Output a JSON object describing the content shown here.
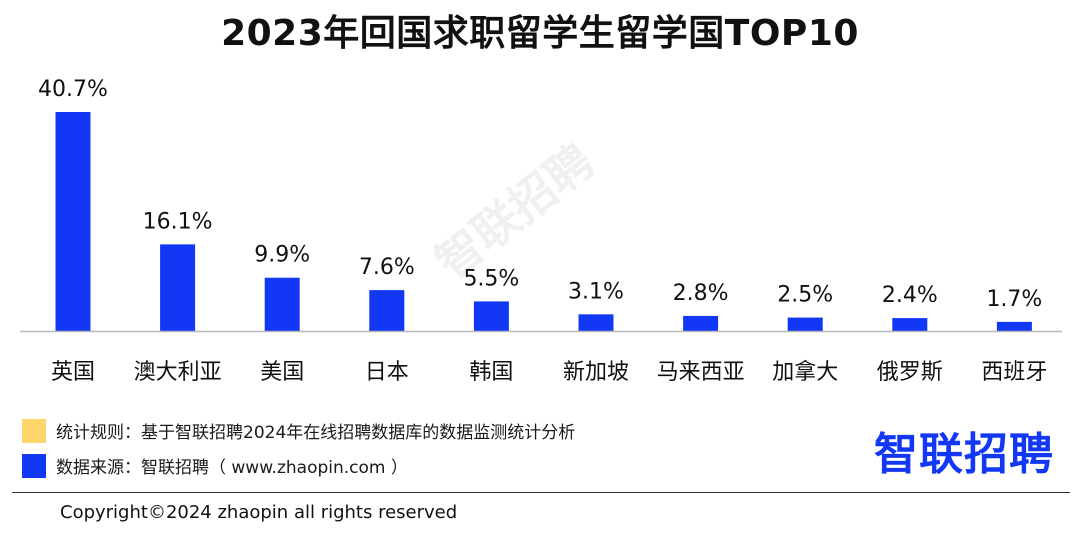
{
  "chart_data": {
    "type": "bar",
    "title": "2023年回国求职留学生留学国TOP10",
    "categories": [
      "英国",
      "澳大利亚",
      "美国",
      "日本",
      "韩国",
      "新加坡",
      "马来西亚",
      "加拿大",
      "俄罗斯",
      "西班牙"
    ],
    "values": [
      40.7,
      16.1,
      9.9,
      7.6,
      5.5,
      3.1,
      2.8,
      2.5,
      2.4,
      1.7
    ],
    "value_labels": [
      "40.7%",
      "16.1%",
      "9.9%",
      "7.6%",
      "5.5%",
      "3.1%",
      "2.8%",
      "2.5%",
      "2.4%",
      "1.7%"
    ],
    "xlabel": "",
    "ylabel": "",
    "ylim": [
      0,
      40.7
    ],
    "grid": false,
    "legend": "none",
    "bar_color": "#1238f5"
  },
  "legend": {
    "rule_text": "统计规则：基于智联招聘2024年在线招聘数据库的数据监测统计分析",
    "rule_color": "#ffd66b",
    "source_text": "数据来源：智联招聘（ www.zhaopin.com ）",
    "source_color": "#1238f5"
  },
  "brand": {
    "logo_text": "智联招聘",
    "logo_color": "#1238f5",
    "watermark_text": "智联招聘"
  },
  "footer": {
    "copyright": "Copyright©2024 zhaopin all rights reserved"
  }
}
